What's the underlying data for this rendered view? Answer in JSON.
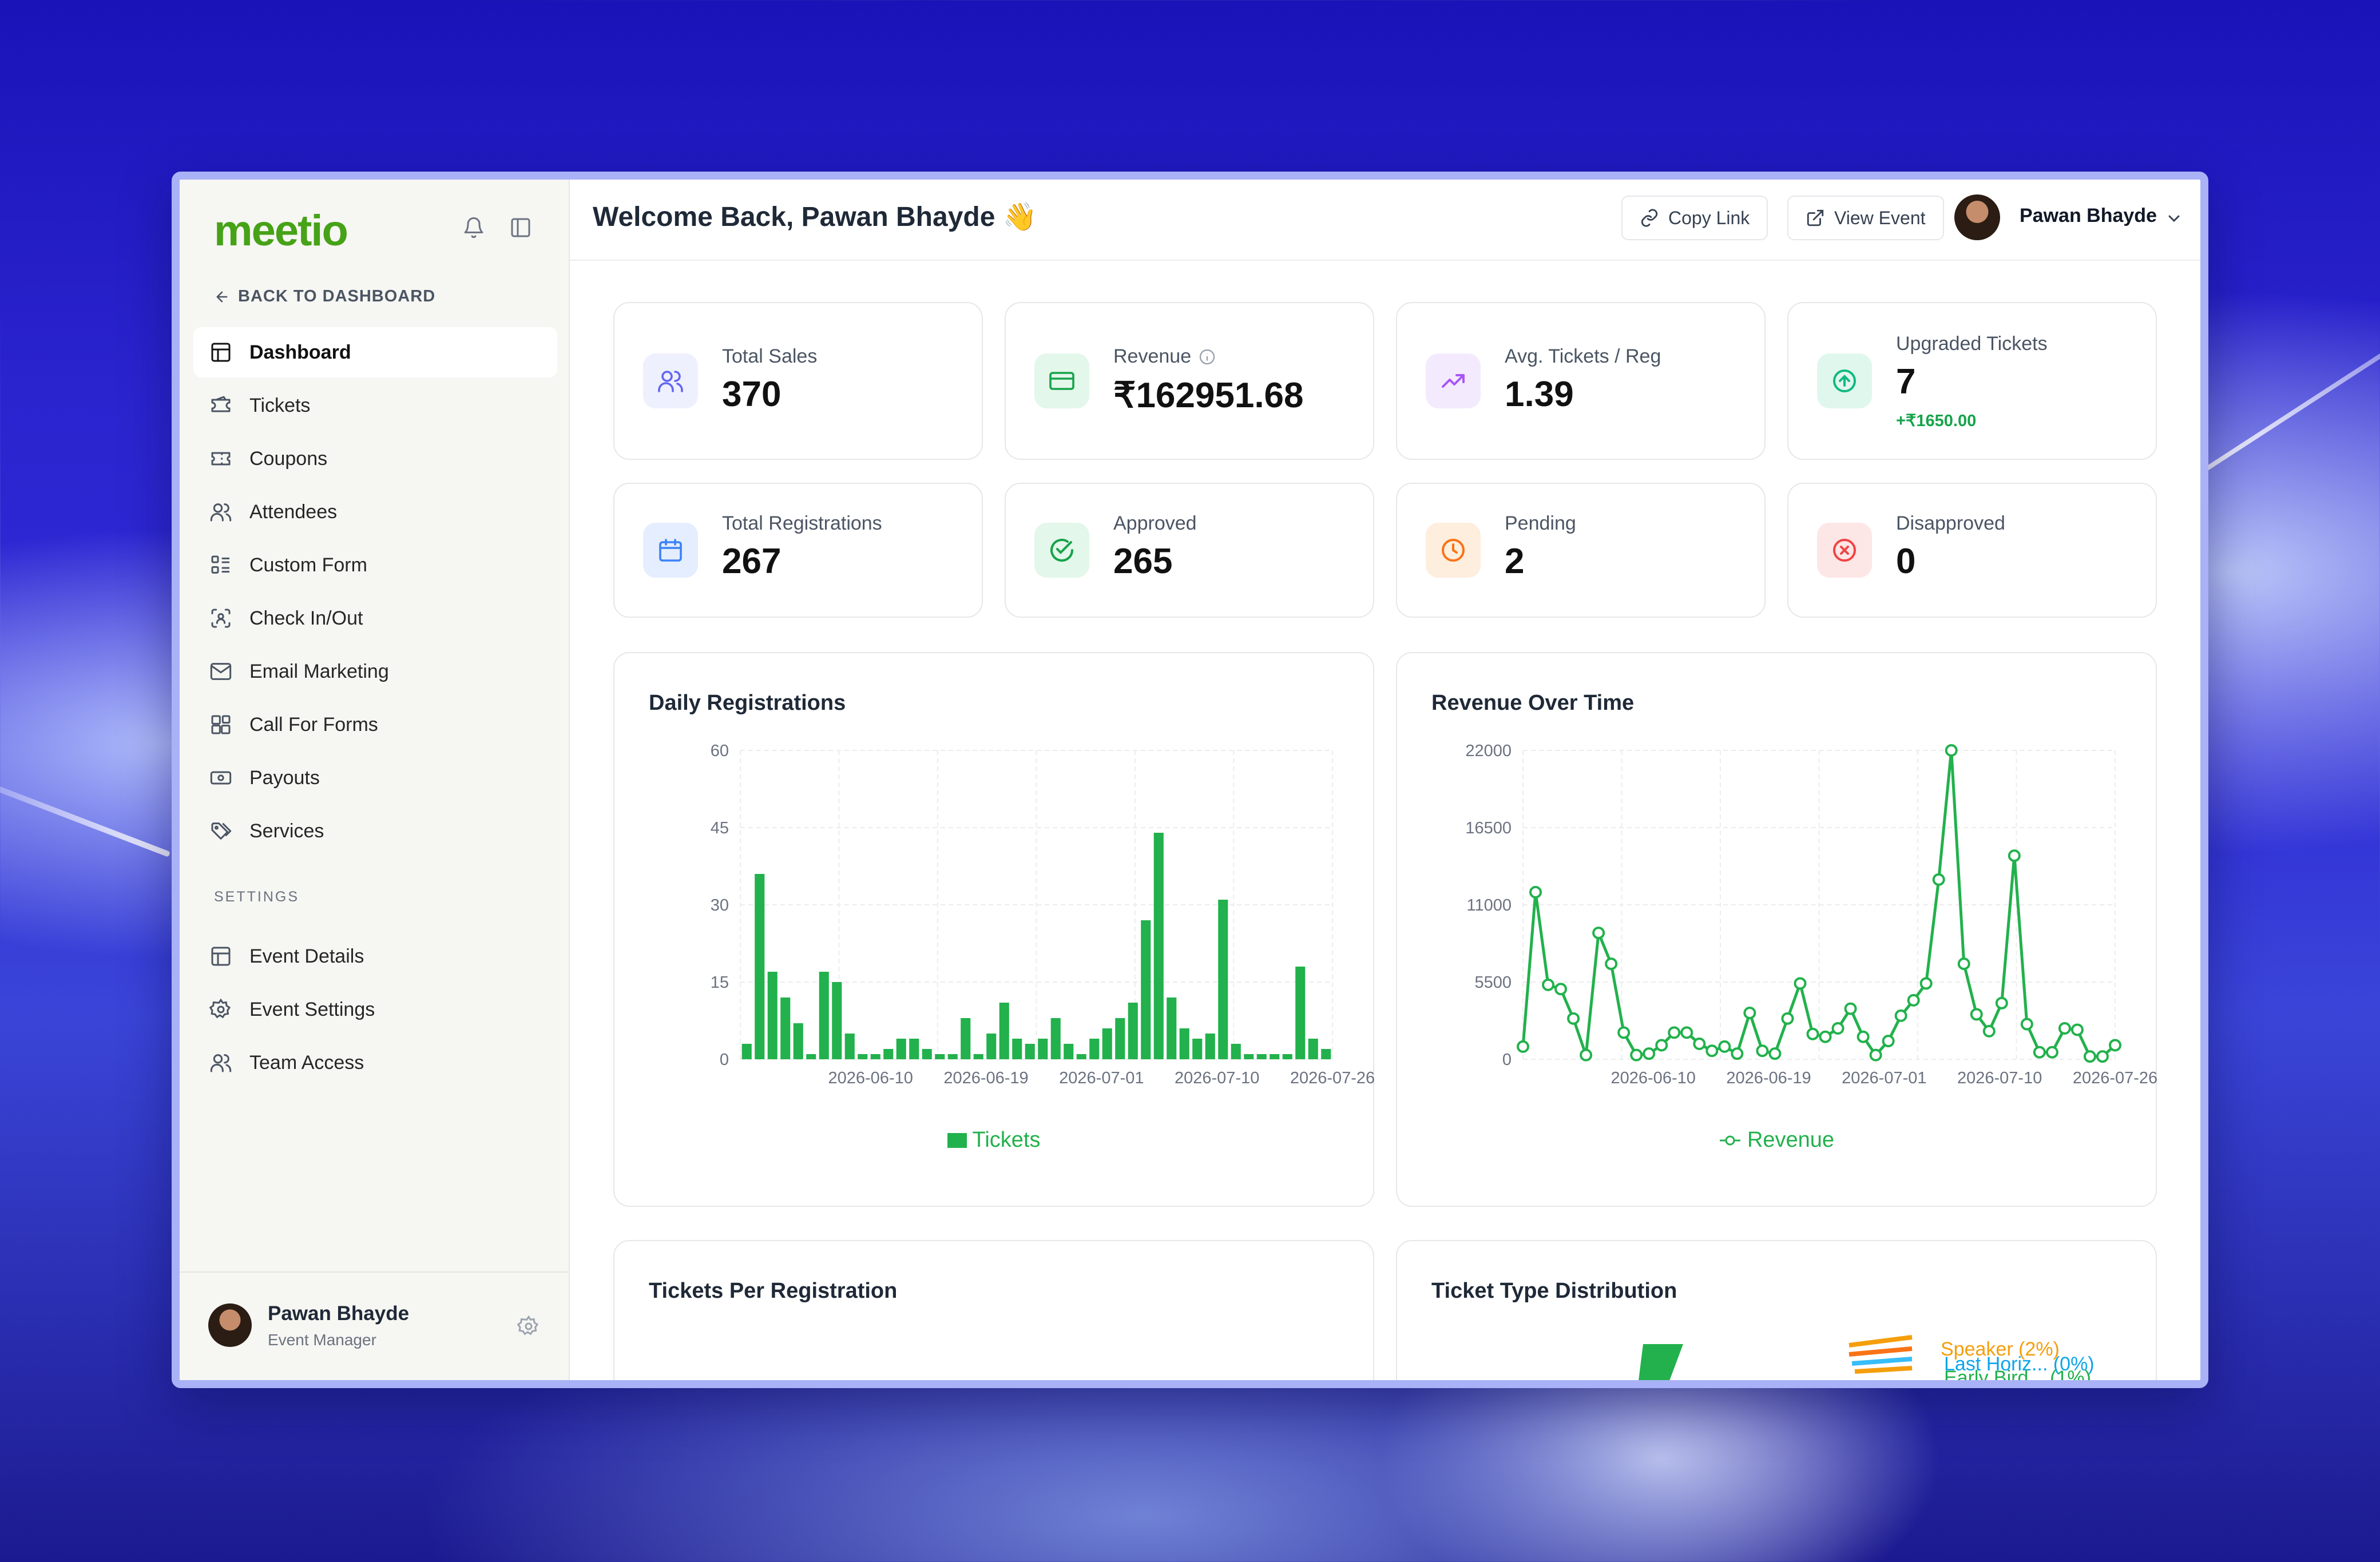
{
  "brand": {
    "logo": "meetio"
  },
  "sidebar": {
    "back_label": "BACK TO DASHBOARD",
    "items": [
      {
        "label": "Dashboard",
        "icon": "layout-icon",
        "active": true
      },
      {
        "label": "Tickets",
        "icon": "ticket-icon"
      },
      {
        "label": "Coupons",
        "icon": "coupon-icon"
      },
      {
        "label": "Attendees",
        "icon": "users-icon"
      },
      {
        "label": "Custom Form",
        "icon": "form-icon"
      },
      {
        "label": "Check In/Out",
        "icon": "scan-icon"
      },
      {
        "label": "Email Marketing",
        "icon": "mail-icon"
      },
      {
        "label": "Call For Forms",
        "icon": "blocks-icon"
      },
      {
        "label": "Payouts",
        "icon": "banknote-icon"
      },
      {
        "label": "Services",
        "icon": "tags-icon"
      }
    ],
    "settings_label": "SETTINGS",
    "settings_items": [
      {
        "label": "Event Details",
        "icon": "layout-icon"
      },
      {
        "label": "Event Settings",
        "icon": "gear-icon"
      },
      {
        "label": "Team Access",
        "icon": "users-icon"
      }
    ],
    "user": {
      "name": "Pawan Bhayde",
      "role": "Event Manager"
    }
  },
  "header": {
    "welcome": "Welcome Back, Pawan Bhayde 👋",
    "copy_link": "Copy Link",
    "view_event": "View Event",
    "user_name": "Pawan Bhayde"
  },
  "stats": [
    {
      "label": "Total Sales",
      "value": "370",
      "icon": "users-icon",
      "color": "#6366f1",
      "bg": "#eef0fe"
    },
    {
      "label": "Revenue",
      "value": "₹162951.68",
      "icon": "card-icon",
      "color": "#16a34a",
      "bg": "#e3f7ea",
      "info": true
    },
    {
      "label": "Avg. Tickets / Reg",
      "value": "1.39",
      "icon": "trend-icon",
      "color": "#a855f7",
      "bg": "#f4eafd"
    },
    {
      "label": "Upgraded Tickets",
      "value": "7",
      "sub": "+₹1650.00",
      "icon": "arrow-up-circle-icon",
      "color": "#10b981",
      "bg": "#e0f7ee"
    },
    {
      "label": "Total Registrations",
      "value": "267",
      "icon": "calendar-icon",
      "color": "#3b82f6",
      "bg": "#e4eefe"
    },
    {
      "label": "Approved",
      "value": "265",
      "icon": "check-circle-icon",
      "color": "#16a34a",
      "bg": "#e3f7ea"
    },
    {
      "label": "Pending",
      "value": "2",
      "icon": "clock-icon",
      "color": "#f97316",
      "bg": "#fdeedd"
    },
    {
      "label": "Disapproved",
      "value": "0",
      "icon": "x-circle-icon",
      "color": "#ef4444",
      "bg": "#fde6e6"
    }
  ],
  "panels": {
    "daily_title": "Daily Registrations",
    "revenue_title": "Revenue Over Time",
    "tickets_per_reg_title": "Tickets Per Registration",
    "ticket_type_title": "Ticket Type Distribution",
    "ticket_type_labels": [
      "Speaker (2%)",
      "Last Horiz... (0%)",
      "Early Bird... (1%)"
    ]
  },
  "chart_data": [
    {
      "type": "bar",
      "title": "Daily Registrations",
      "series_name": "Tickets",
      "color": "#22b14c",
      "ylim": [
        0,
        60
      ],
      "yticks": [
        0,
        15,
        30,
        45,
        60
      ],
      "xticks": [
        "2026-06-10",
        "2026-06-19",
        "2026-07-01",
        "2026-07-10",
        "2026-07-26"
      ],
      "legend": "bottom",
      "grid": true,
      "values": [
        3,
        36,
        17,
        12,
        7,
        1,
        17,
        15,
        5,
        1,
        1,
        2,
        4,
        4,
        2,
        1,
        1,
        8,
        1,
        5,
        11,
        4,
        3,
        4,
        8,
        3,
        1,
        4,
        6,
        8,
        11,
        27,
        44,
        12,
        6,
        4,
        5,
        31,
        3,
        1,
        1,
        1,
        1,
        18,
        4,
        2
      ]
    },
    {
      "type": "line",
      "title": "Revenue Over Time",
      "series_name": "Revenue",
      "color": "#22b14c",
      "ylim": [
        0,
        22000
      ],
      "yticks": [
        0,
        5500,
        11000,
        16500,
        22000
      ],
      "xticks": [
        "2026-06-10",
        "2026-06-19",
        "2026-07-01",
        "2026-07-10",
        "2026-07-26"
      ],
      "legend": "bottom",
      "grid": true,
      "values": [
        900,
        11900,
        5300,
        5000,
        2900,
        300,
        9000,
        6800,
        1900,
        300,
        400,
        1000,
        1900,
        1900,
        1100,
        600,
        900,
        400,
        3300,
        600,
        400,
        2900,
        5400,
        1800,
        1600,
        2200,
        3600,
        1600,
        300,
        1300,
        3100,
        4200,
        5400,
        12800,
        22000,
        6800,
        3200,
        2000,
        4000,
        14500,
        2500,
        500,
        500,
        2200,
        2100,
        200,
        200,
        1000
      ]
    }
  ]
}
